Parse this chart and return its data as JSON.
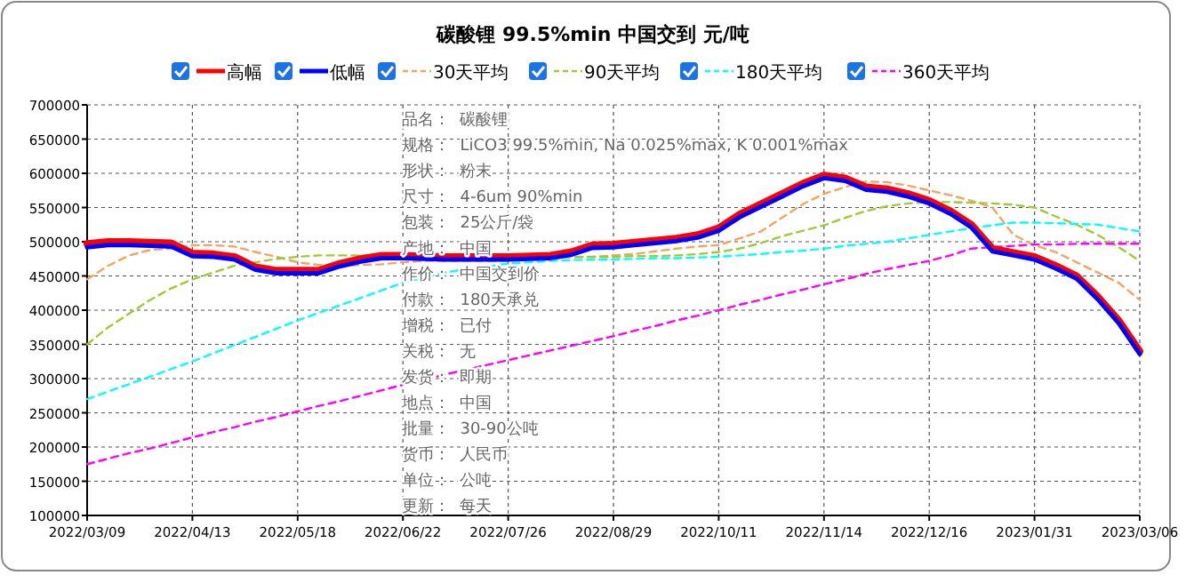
{
  "chart_data": {
    "type": "line",
    "title": "碳酸锂 99.5%min 中国交到 元/吨",
    "categories": [
      "2022/03/09",
      null,
      null,
      null,
      null,
      "2022/04/13",
      null,
      null,
      null,
      null,
      "2022/05/18",
      null,
      null,
      null,
      null,
      "2022/06/22",
      null,
      null,
      null,
      null,
      "2022/07/26",
      null,
      null,
      null,
      null,
      "2022/08/29",
      null,
      null,
      null,
      null,
      "2022/10/11",
      null,
      null,
      null,
      null,
      "2022/11/14",
      null,
      null,
      null,
      null,
      "2022/12/16",
      null,
      null,
      null,
      null,
      "2023/01/31",
      null,
      null,
      null,
      null,
      "2023/03/06"
    ],
    "series": [
      {
        "name": "30天平均",
        "color": "#f4a460",
        "line_style": "dashed",
        "values": [
          445000,
          465000,
          480000,
          488000,
          490000,
          495000,
          495000,
          493000,
          485000,
          478000,
          470000,
          466000,
          465000,
          466000,
          467000,
          470000,
          472000,
          472000,
          472000,
          472000,
          472000,
          474000,
          476000,
          477000,
          478000,
          480000,
          482000,
          486000,
          490000,
          493000,
          495000,
          505000,
          515000,
          535000,
          555000,
          570000,
          580000,
          588000,
          587000,
          582000,
          575000,
          568000,
          560000,
          550000,
          510000,
          495000,
          485000,
          470000,
          455000,
          440000,
          415000
        ]
      },
      {
        "name": "90天平均",
        "color": "#9acd32",
        "line_style": "dashed",
        "values": [
          350000,
          375000,
          395000,
          415000,
          432000,
          445000,
          455000,
          465000,
          470000,
          475000,
          478000,
          480000,
          480000,
          480000,
          480000,
          480000,
          480000,
          479000,
          479000,
          478000,
          478000,
          478000,
          478000,
          478000,
          478000,
          478000,
          479000,
          479000,
          480000,
          482000,
          485000,
          490000,
          498000,
          508000,
          516000,
          524000,
          535000,
          545000,
          552000,
          556000,
          558000,
          558000,
          557000,
          556000,
          554000,
          550000,
          537000,
          525000,
          510000,
          492000,
          472000
        ]
      },
      {
        "name": "180天平均",
        "color": "#00ffff",
        "line_style": "dashed",
        "values": [
          270000,
          281000,
          292000,
          303000,
          314000,
          325000,
          337000,
          349000,
          361000,
          373000,
          385000,
          396000,
          407000,
          418000,
          429000,
          440000,
          448000,
          455000,
          460000,
          464000,
          468000,
          470000,
          472000,
          473000,
          474000,
          474000,
          475000,
          476000,
          476000,
          477000,
          478000,
          480000,
          482000,
          485000,
          487000,
          490000,
          494000,
          497000,
          500000,
          505000,
          510000,
          515000,
          520000,
          524000,
          528000,
          528000,
          527000,
          526000,
          525000,
          520000,
          515000
        ]
      },
      {
        "name": "360天平均",
        "color": "#ff00ff",
        "line_style": "dashed",
        "values": [
          175000,
          183000,
          191000,
          198000,
          206000,
          214000,
          222000,
          229000,
          237000,
          244000,
          252000,
          260000,
          267000,
          275000,
          283000,
          291000,
          298000,
          306000,
          313000,
          320000,
          327000,
          334000,
          341000,
          348000,
          355000,
          362000,
          370000,
          377000,
          385000,
          392000,
          400000,
          408000,
          415000,
          423000,
          430000,
          438000,
          445000,
          453000,
          460000,
          466000,
          472000,
          480000,
          490000,
          492000,
          494000,
          496000,
          496000,
          497000,
          497000,
          497000,
          497000
        ]
      },
      {
        "name": "高幅",
        "color": "#ff0000",
        "line_style": "solid",
        "values": [
          497000,
          500000,
          500000,
          499000,
          498000,
          483000,
          482000,
          478000,
          463000,
          458000,
          458000,
          458000,
          468000,
          475000,
          480000,
          480000,
          479000,
          478000,
          478000,
          478000,
          478000,
          479000,
          480000,
          485000,
          495000,
          496000,
          499000,
          502000,
          505000,
          510000,
          520000,
          540000,
          555000,
          570000,
          585000,
          597000,
          593000,
          580000,
          577000,
          570000,
          560000,
          545000,
          525000,
          490000,
          484000,
          478000,
          465000,
          450000,
          420000,
          385000,
          340000
        ]
      },
      {
        "name": "低幅",
        "color": "#0000ff",
        "line_style": "solid",
        "values": [
          492000,
          495000,
          495000,
          494000,
          493000,
          479000,
          478000,
          474000,
          459000,
          454000,
          454000,
          454000,
          464000,
          471000,
          476000,
          476000,
          475000,
          474000,
          474000,
          474000,
          474000,
          475000,
          476000,
          481000,
          491000,
          492000,
          495000,
          498000,
          501000,
          506000,
          516000,
          536000,
          551000,
          566000,
          581000,
          593000,
          589000,
          576000,
          573000,
          566000,
          556000,
          541000,
          521000,
          486000,
          480000,
          474000,
          461000,
          446000,
          416000,
          381000,
          336000
        ]
      }
    ],
    "ylim": [
      100000,
      700000
    ],
    "yticks": [
      100000,
      150000,
      200000,
      250000,
      300000,
      350000,
      400000,
      450000,
      500000,
      550000,
      600000,
      650000,
      700000
    ],
    "grid": true,
    "legend": "top",
    "annotations": [
      "品名：  碳酸锂",
      "规格：  LiCO3 99.5%min, Na 0.025%max, K 0.001%max",
      "形状：  粉末",
      "尺寸：  4-6um 90%min",
      "包装：  25公斤/袋",
      "产地：  中国",
      "作价：  中国交到价",
      "付款：  180天承兑",
      "增税：  已付",
      "关税：  无",
      "发货：  即期",
      "地点：  中国",
      "批量：  30-90公吨",
      "货币：  人民币",
      "单位：  公吨",
      "更新：  每天"
    ]
  }
}
